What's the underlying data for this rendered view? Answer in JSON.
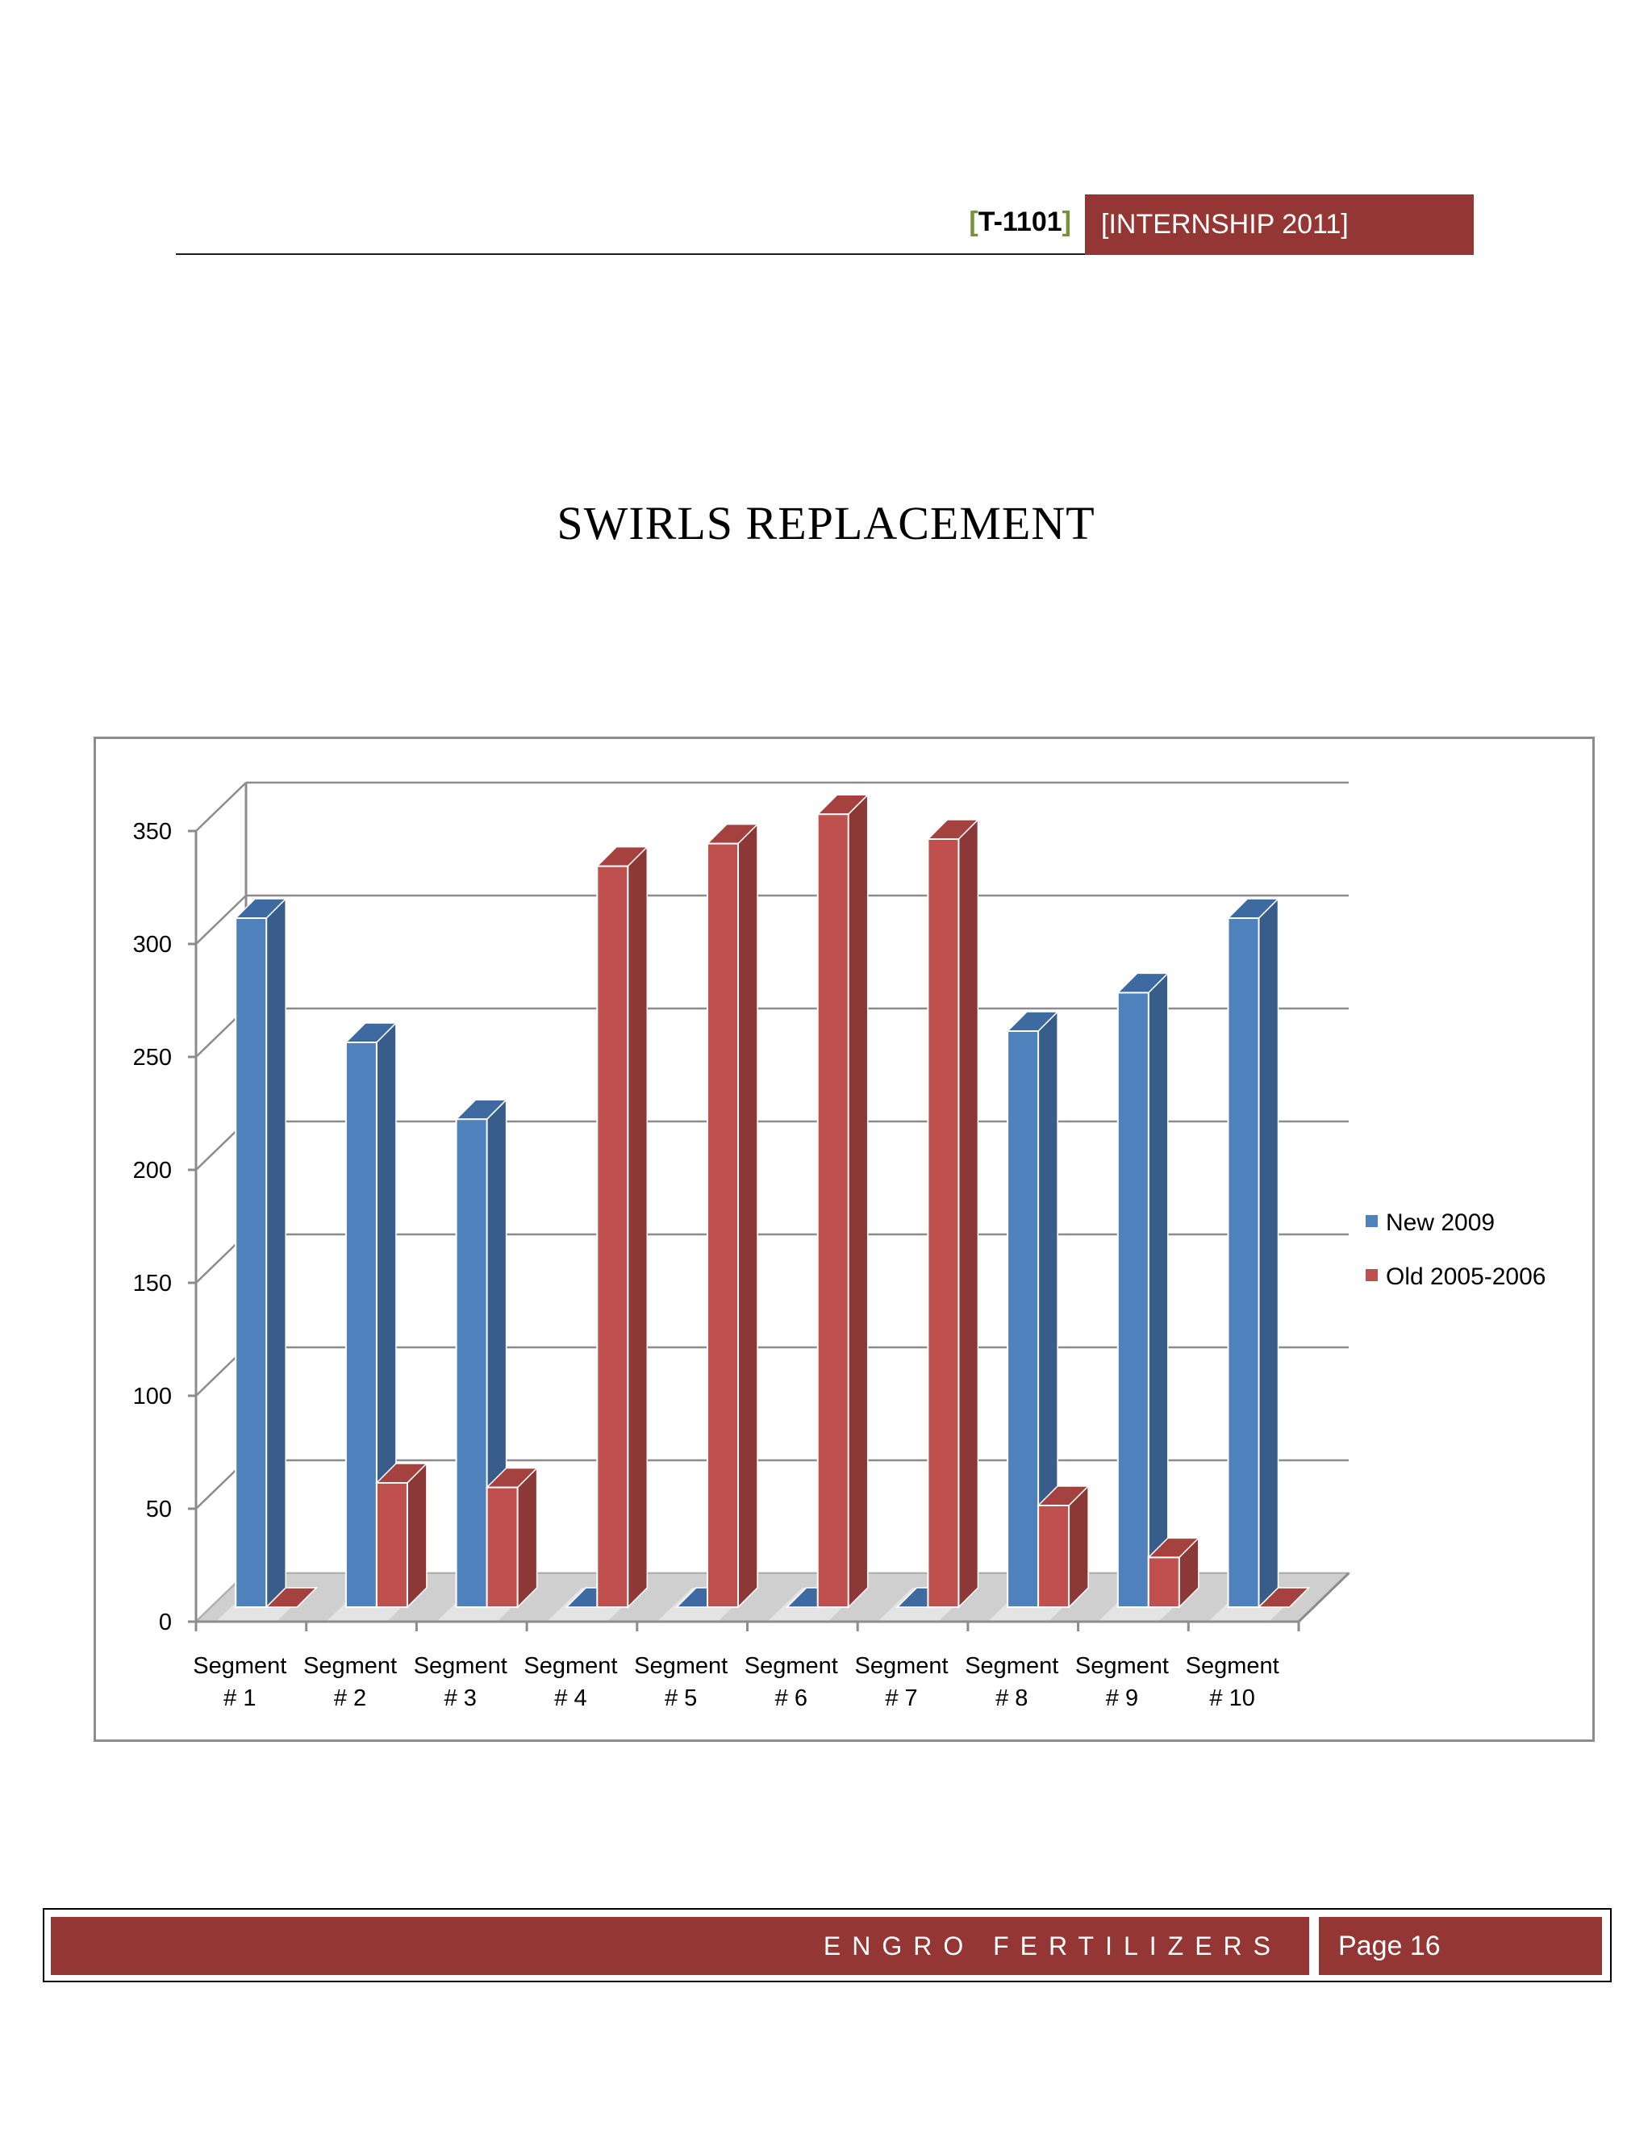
{
  "header": {
    "open_bracket": "[",
    "doc_code": "T-1101",
    "close_bracket": "]",
    "tag": "[INTERNSHIP 2011]"
  },
  "title": "SWIRLS REPLACEMENT",
  "chart_data": {
    "type": "bar",
    "style": "3d-clustered-column",
    "title": "",
    "xlabel": "",
    "ylabel": "",
    "ylim": [
      0,
      350
    ],
    "yticks": [
      0,
      50,
      100,
      150,
      200,
      250,
      300,
      350
    ],
    "grid": true,
    "legend_position": "right",
    "categories": [
      [
        "Segment",
        "# 1"
      ],
      [
        "Segment",
        "# 2"
      ],
      [
        "Segment",
        "# 3"
      ],
      [
        "Segment",
        "# 4"
      ],
      [
        "Segment",
        "# 5"
      ],
      [
        "Segment",
        "# 6"
      ],
      [
        "Segment",
        "# 7"
      ],
      [
        "Segment",
        "# 8"
      ],
      [
        "Segment",
        "# 9"
      ],
      [
        "Segment",
        "# 10"
      ]
    ],
    "series": [
      {
        "name": "New 2009",
        "color": "#4f81bd",
        "side_color": "#385d8a",
        "top_color": "#3d6aa0",
        "values": [
          305,
          250,
          216,
          0,
          0,
          0,
          0,
          255,
          272,
          305
        ]
      },
      {
        "name": "Old 2005-2006",
        "color": "#c0504d",
        "side_color": "#8c3836",
        "top_color": "#a5423f",
        "values": [
          0,
          55,
          53,
          328,
          338,
          351,
          340,
          45,
          22,
          0
        ]
      }
    ]
  },
  "footer": {
    "company": "ENGRO FERTILIZERS",
    "page": "Page 16"
  }
}
